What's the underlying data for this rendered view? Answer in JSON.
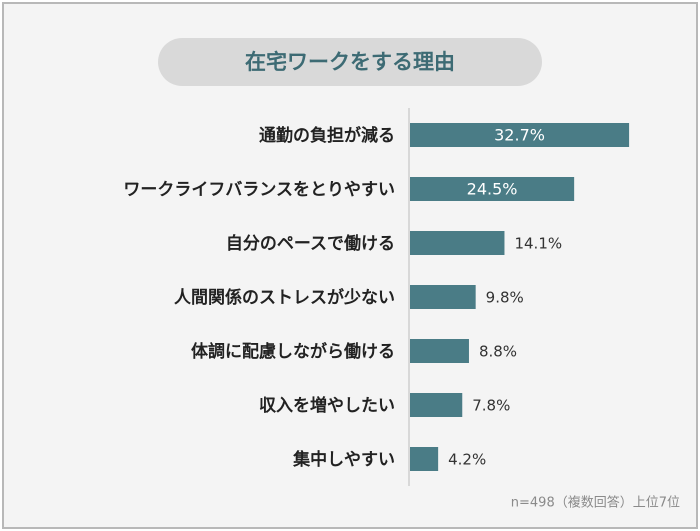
{
  "chart_data": {
    "type": "bar",
    "orientation": "horizontal",
    "title": "在宅ワークをする理由",
    "categories": [
      "通勤の負担が減る",
      "ワークライフバランスをとりやすい",
      "自分のペースで働ける",
      "人間関係のストレスが少ない",
      "体調に配慮しながら働ける",
      "収入を増やしたい",
      "集中しやすい"
    ],
    "values": [
      32.7,
      24.5,
      14.1,
      9.8,
      8.8,
      7.8,
      4.2
    ],
    "value_labels": [
      "32.7%",
      "24.5%",
      "14.1%",
      "9.8%",
      "8.8%",
      "7.8%",
      "4.2%"
    ],
    "color": "#4a7c86",
    "note": "n=498（複数回答）上位7位"
  }
}
